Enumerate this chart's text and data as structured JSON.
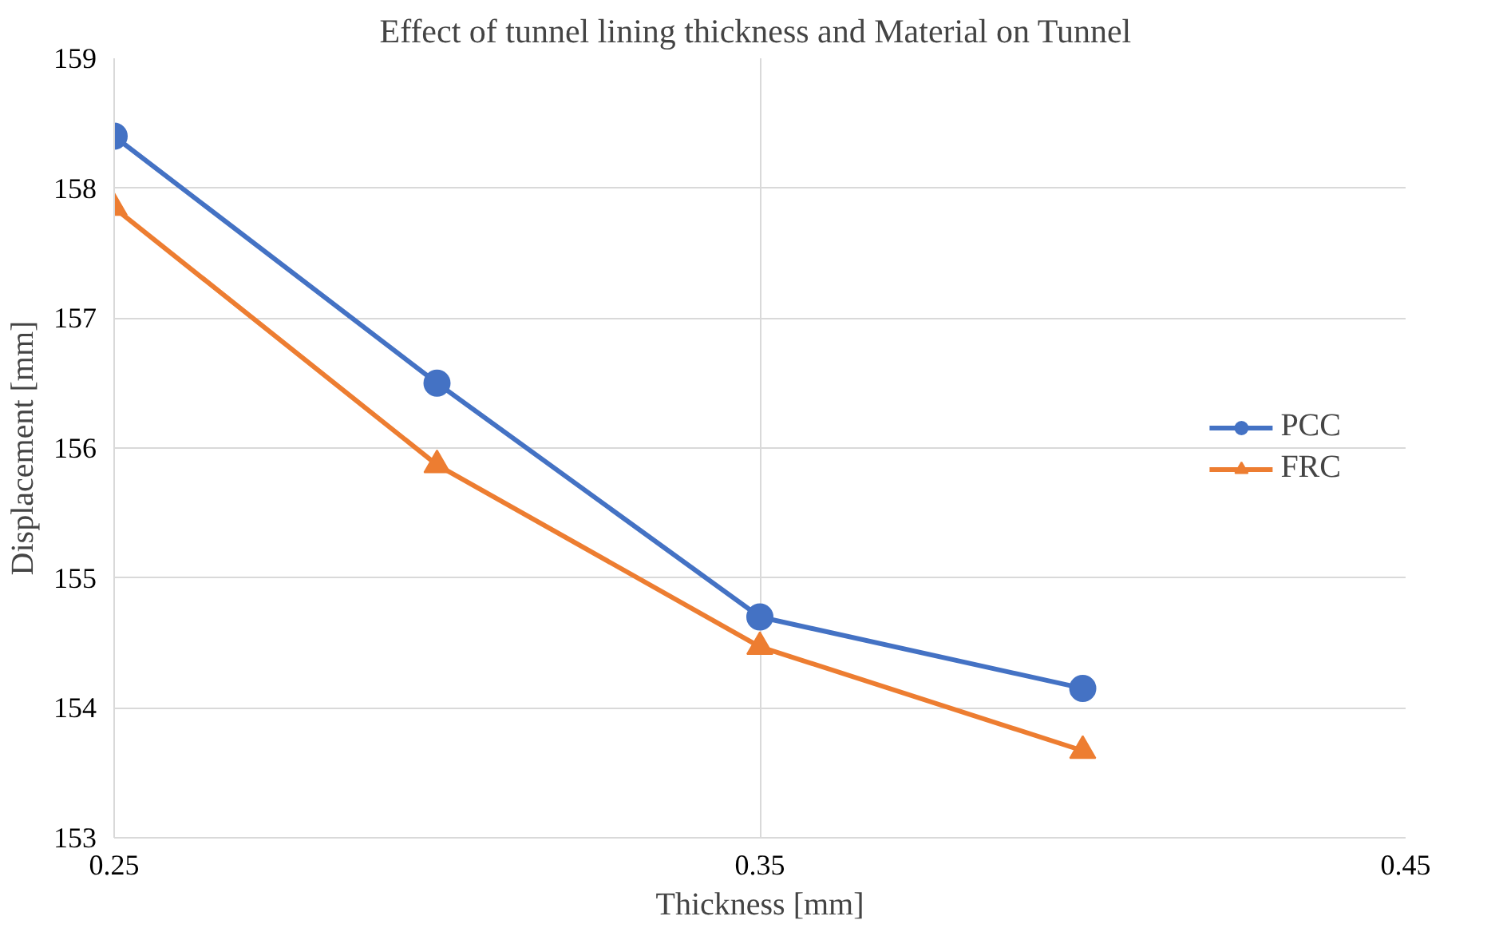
{
  "chart_data": {
    "type": "line",
    "title": "Effect of tunnel lining thickness and Material  on Tunnel",
    "xlabel": "Thickness [mm]",
    "ylabel": "Displacement [mm]",
    "x": [
      0.25,
      0.3,
      0.35,
      0.4
    ],
    "series": [
      {
        "name": "PCC",
        "color": "#4472c4",
        "marker": "circle",
        "values": [
          158.4,
          156.5,
          154.7,
          154.15
        ]
      },
      {
        "name": "FRC",
        "color": "#ed7d31",
        "marker": "triangle",
        "values": [
          157.85,
          155.87,
          154.47,
          153.67
        ]
      }
    ],
    "xlim": [
      0.25,
      0.45
    ],
    "xticks": [
      0.25,
      0.35,
      0.45
    ],
    "ylim": [
      153,
      159
    ],
    "yticks": [
      153,
      154,
      155,
      156,
      157,
      158,
      159
    ],
    "grid": true,
    "legend": "right",
    "line_style": "solid"
  }
}
